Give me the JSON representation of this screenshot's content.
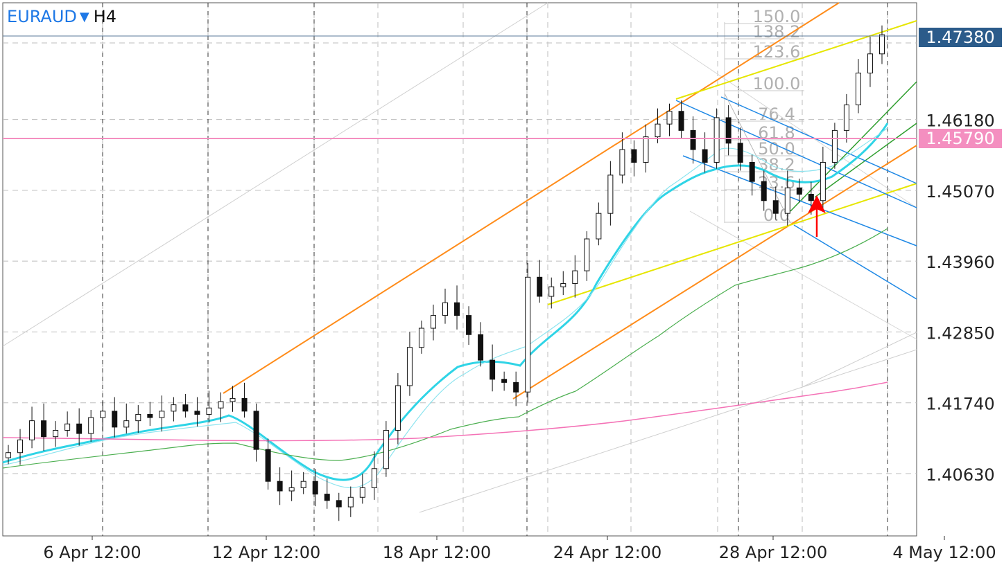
{
  "header": {
    "symbol": "EURAUD",
    "dropdown_icon": "triangle-down-icon",
    "timeframe": "H4"
  },
  "price_tags": {
    "current": {
      "value": "1.47380",
      "color": "#2b5b8a"
    },
    "level": {
      "value": "1.45790",
      "color": "#f48fc0"
    }
  },
  "chart_data": {
    "type": "candlestick",
    "y_ticks": [
      "1.47380",
      "1.46180",
      "1.45070",
      "1.43960",
      "1.42850",
      "1.41740",
      "1.40630"
    ],
    "ylim": [
      1.398,
      1.48
    ],
    "x_ticks": [
      "6 Apr 12:00",
      "12 Apr 12:00",
      "18 Apr 12:00",
      "24 Apr 12:00",
      "28 Apr 12:00",
      "4 May 12:00"
    ],
    "grid": true,
    "horizontal_line": {
      "value": 1.4579,
      "color": "#f48fc0"
    },
    "fib_levels": [
      "150.0",
      "138.2",
      "123.6",
      "100.0",
      "76.4",
      "61.8",
      "50.0",
      "38.2",
      "23.6",
      "0.0"
    ],
    "candles_close_path": [
      1.4085,
      1.4105,
      1.4135,
      1.411,
      1.412,
      1.413,
      1.4115,
      1.414,
      1.415,
      1.4125,
      1.4135,
      1.4145,
      1.414,
      1.415,
      1.416,
      1.415,
      1.4145,
      1.4155,
      1.4165,
      1.417,
      1.415,
      1.409,
      1.404,
      1.4025,
      1.403,
      1.404,
      1.402,
      1.401,
      1.4,
      1.4015,
      1.403,
      1.406,
      1.412,
      1.419,
      1.425,
      1.428,
      1.43,
      1.432,
      1.43,
      1.427,
      1.423,
      1.42,
      1.4195,
      1.418,
      1.436,
      1.433,
      1.4345,
      1.435,
      1.437,
      1.442,
      1.446,
      1.452,
      1.456,
      1.454,
      1.458,
      1.46,
      1.462,
      1.459,
      1.456,
      1.454,
      1.461,
      1.457,
      1.454,
      1.451,
      1.448,
      1.446,
      1.45,
      1.449,
      1.448,
      1.454,
      1.459,
      1.463,
      1.468,
      1.471,
      1.474
    ],
    "series": [
      {
        "name": "",
        "color": "#33d6e8",
        "style": "thick"
      },
      {
        "name": "",
        "color": "#7fe3f0",
        "style": "thin"
      },
      {
        "name": "",
        "color": "#4caf50",
        "style": "thin"
      },
      {
        "name": "",
        "color": "#f472b6",
        "style": "thin"
      }
    ],
    "annotation": {
      "type": "arrow-up",
      "color": "#ff0000"
    }
  }
}
